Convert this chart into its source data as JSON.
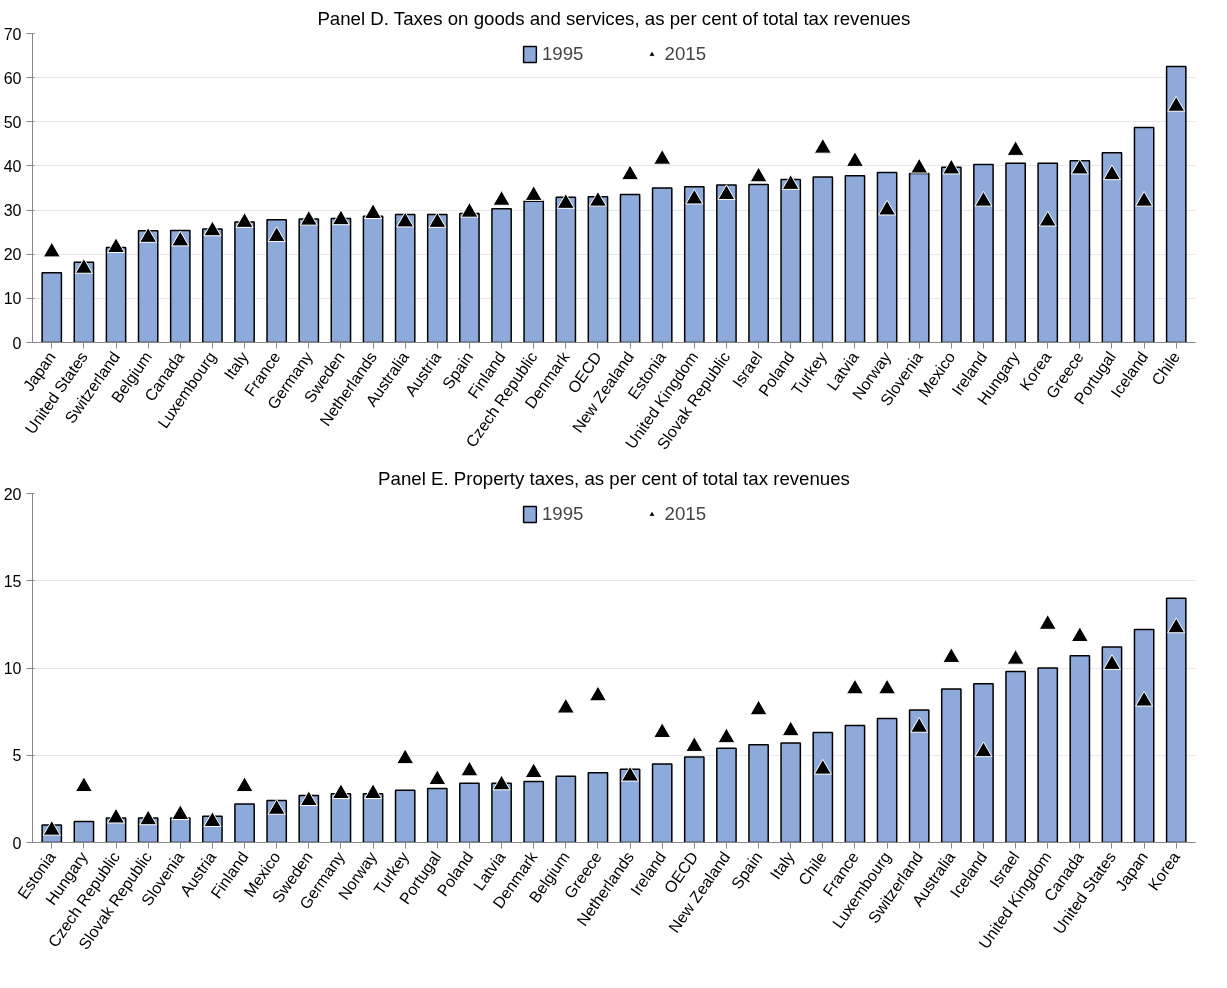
{
  "chart_data": [
    {
      "type": "bar",
      "title": "Panel D. Taxes on goods and services, as per cent of total tax revenues",
      "categories": [
        "Japan",
        "United States",
        "Switzerland",
        "Belgium",
        "Canada",
        "Luxembourg",
        "Italy",
        "France",
        "Germany",
        "Sweden",
        "Netherlands",
        "Australia",
        "Austria",
        "Spain",
        "Finland",
        "Czech Republic",
        "Denmark",
        "OECD",
        "New Zealand",
        "Estonia",
        "United Kingdom",
        "Slovak Republic",
        "Israel",
        "Poland",
        "Turkey",
        "Latvia",
        "Norway",
        "Slovenia",
        "Mexico",
        "Ireland",
        "Hungary",
        "Korea",
        "Greece",
        "Portugal",
        "Iceland",
        "Chile"
      ],
      "series": [
        {
          "name": "1995",
          "color": "#8eaadb",
          "values": [
            15.8,
            18.2,
            21.5,
            25.3,
            25.4,
            25.7,
            27.3,
            27.8,
            28,
            28.1,
            28.6,
            29,
            29,
            29.2,
            30.3,
            32,
            32.9,
            33,
            33.5,
            35,
            35.3,
            35.7,
            35.8,
            36.9,
            37.5,
            37.8,
            38.5,
            38.3,
            39.7,
            40.3,
            40.6,
            40.6,
            41.2,
            43,
            48.7,
            62.5
          ]
        },
        {
          "name": "2015",
          "type": "scatter",
          "color": "#000000",
          "values": [
            20.5,
            16.8,
            21.5,
            23.8,
            23,
            25.3,
            27.2,
            24,
            27.7,
            27.8,
            29.2,
            27.3,
            27.2,
            29.5,
            32.2,
            33.3,
            31.5,
            32,
            38,
            41.5,
            32.5,
            33.5,
            37.5,
            35.8,
            44,
            41,
            30,
            39.5,
            39.3,
            32,
            43.5,
            27.5,
            39.3,
            38,
            32,
            53.5
          ]
        }
      ],
      "ylim": [
        0,
        70
      ],
      "yticks": [
        0,
        10,
        20,
        30,
        40,
        50,
        60,
        70
      ],
      "grid": "y",
      "legend": "top",
      "marker": "triangle"
    },
    {
      "type": "bar",
      "title": "Panel E. Property taxes, as per cent of total tax revenues",
      "categories": [
        "Estonia",
        "Hungary",
        "Czech Republic",
        "Slovak Republic",
        "Slovenia",
        "Austria",
        "Finland",
        "Mexico",
        "Sweden",
        "Germany",
        "Norway",
        "Turkey",
        "Portugal",
        "Poland",
        "Latvia",
        "Denmark",
        "Belgium",
        "Greece",
        "Netherlands",
        "Ireland",
        "OECD",
        "New Zealand",
        "Spain",
        "Italy",
        "Chile",
        "France",
        "Luxembourg",
        "Switzerland",
        "Australia",
        "Iceland",
        "Israel",
        "United Kingdom",
        "Canada",
        "United States",
        "Japan",
        "Korea"
      ],
      "series": [
        {
          "name": "1995",
          "color": "#8eaadb",
          "values": [
            1.0,
            1.2,
            1.4,
            1.4,
            1.4,
            1.5,
            2.2,
            2.4,
            2.7,
            2.8,
            2.8,
            3.0,
            3.1,
            3.4,
            3.4,
            3.5,
            3.8,
            4.0,
            4.2,
            4.5,
            4.9,
            5.4,
            5.6,
            5.7,
            6.3,
            6.7,
            7.1,
            7.6,
            8.8,
            9.1,
            9.8,
            10.0,
            10.7,
            11.2,
            12.2,
            14.0
          ]
        },
        {
          "name": "2015",
          "type": "scatter",
          "color": "#000000",
          "values": [
            0.7,
            3.2,
            1.4,
            1.3,
            1.6,
            1.2,
            3.2,
            1.9,
            2.4,
            2.8,
            2.8,
            4.8,
            3.6,
            4.1,
            3.3,
            4.0,
            7.7,
            8.4,
            3.8,
            6.3,
            5.5,
            6.0,
            7.6,
            6.4,
            4.2,
            8.8,
            8.8,
            6.6,
            10.6,
            5.2,
            10.5,
            12.5,
            11.8,
            10.2,
            8.1,
            12.3
          ]
        }
      ],
      "ylim": [
        0,
        20
      ],
      "yticks": [
        0,
        5,
        10,
        15,
        20
      ],
      "grid": "y",
      "legend": "top",
      "marker": "triangle"
    }
  ]
}
